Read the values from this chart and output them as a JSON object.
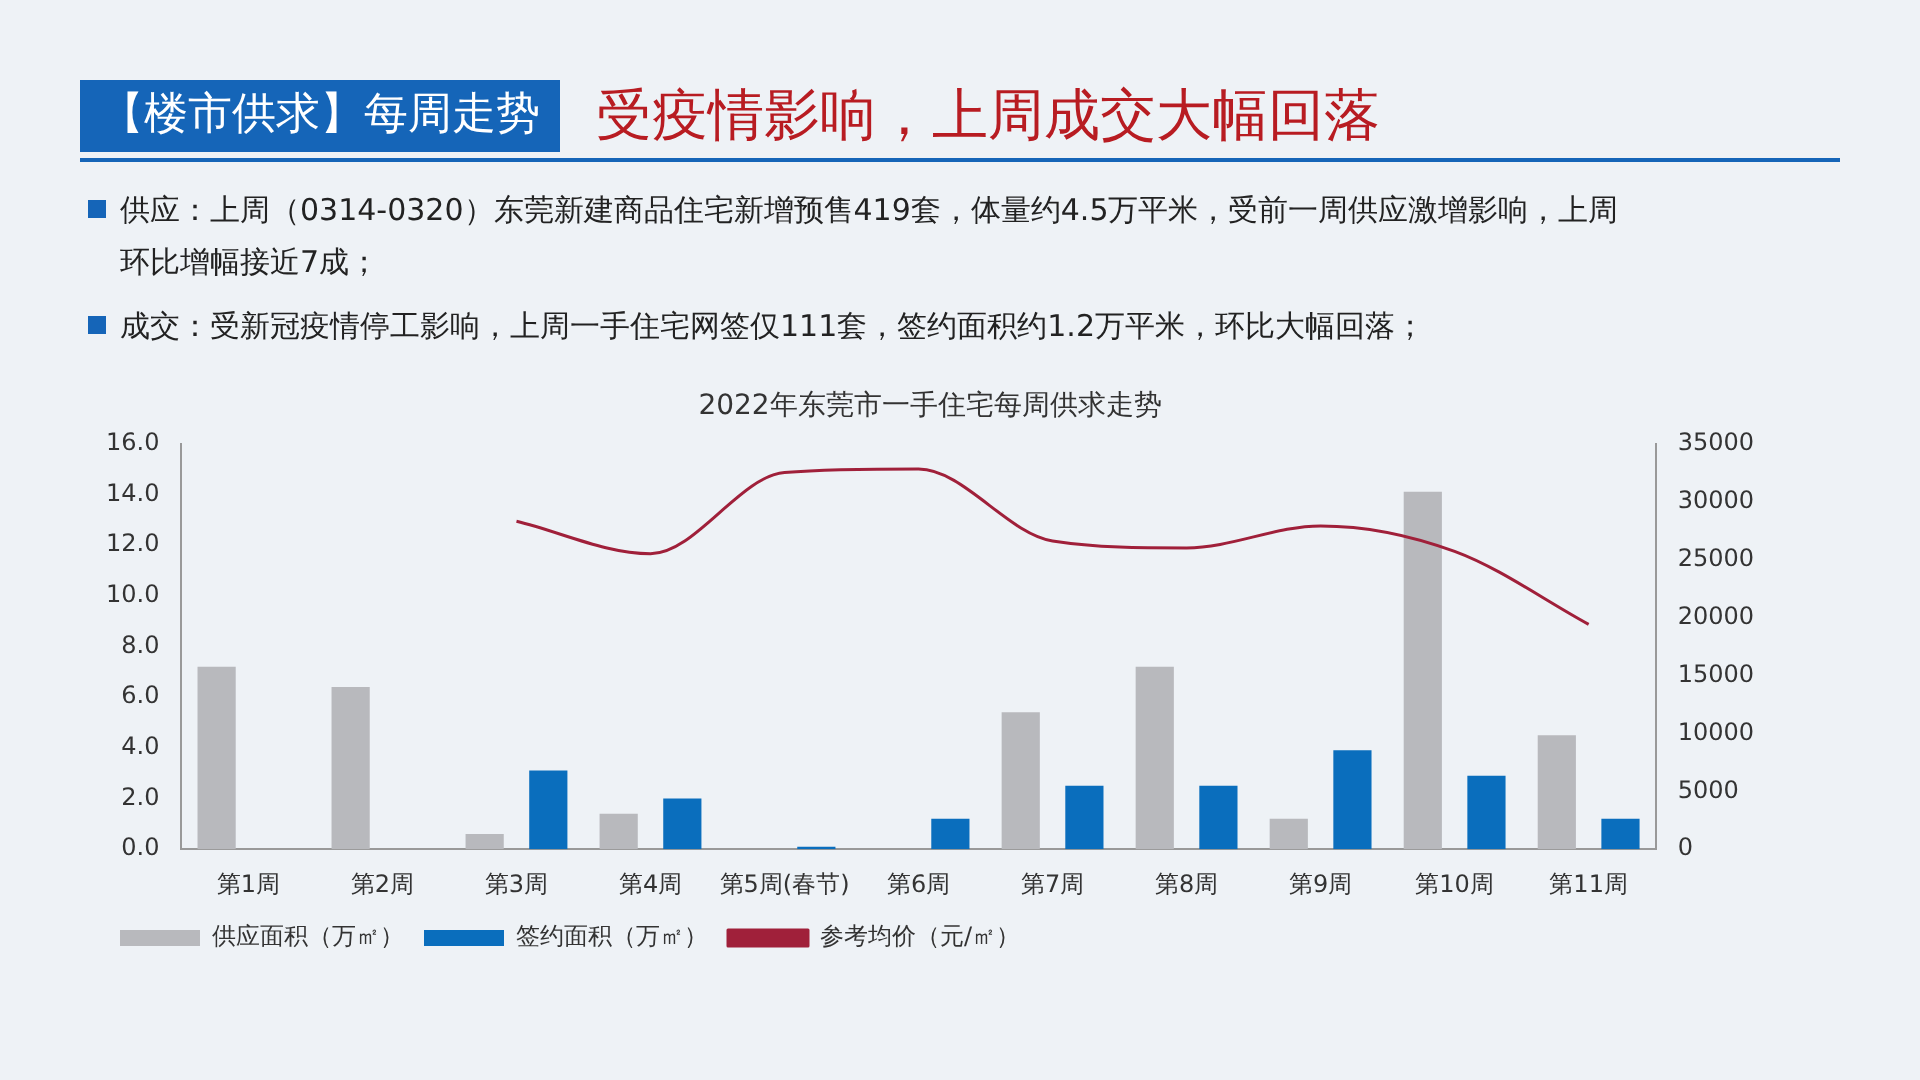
{
  "chart_data": {
    "type": "bar",
    "title": "2022年东莞市一手住宅每周供求走势",
    "annotations": [
      "【楼市供求】每周走势",
      "受疫情影响，上周成交大幅回落",
      "供应：上周（0314-0320）东莞新建商品住宅新增预售419套，体量约4.5万平米，受前一周供应激增影响，上周环比增幅接近7成；",
      "成交：受新冠疫情停工影响，上周一手住宅网签仅111套，签约面积约1.2万平米，环比大幅回落；"
    ],
    "categories": [
      "第1周",
      "第2周",
      "第3周",
      "第4周",
      "第5周(春节)",
      "第6周",
      "第7周",
      "第8周",
      "第9周",
      "第10周",
      "第11周"
    ],
    "series": [
      {
        "name": "供应面积（万㎡）",
        "color": "#b8b9bd",
        "values": [
          7.2,
          6.4,
          0.6,
          1.4,
          null,
          null,
          5.4,
          7.2,
          1.2,
          14.1,
          4.5
        ]
      },
      {
        "name": "签约面积（万㎡）",
        "color": "#0a6ebd",
        "values": [
          null,
          null,
          3.1,
          2.0,
          0.1,
          1.2,
          2.5,
          2.5,
          3.9,
          2.9,
          1.2
        ]
      },
      {
        "name": "参考均价（元/㎡）",
        "type": "line",
        "axis": "y2",
        "color": "#a0203a",
        "values": [
          null,
          null,
          28300,
          25500,
          32500,
          32800,
          26600,
          26000,
          27900,
          25700,
          19400
        ]
      }
    ],
    "ylim": [
      0,
      16
    ],
    "yticks": [
      {
        "value": 0,
        "label": "0.0"
      },
      {
        "value": 2,
        "label": "2.0"
      },
      {
        "value": 4,
        "label": "4.0"
      },
      {
        "value": 6,
        "label": "6.0"
      },
      {
        "value": 8,
        "label": "8.0"
      },
      {
        "value": 10,
        "label": "10.0"
      },
      {
        "value": 12,
        "label": "12.0"
      },
      {
        "value": 14,
        "label": "14.0"
      },
      {
        "value": 16,
        "label": "16.0"
      }
    ],
    "y2lim": [
      0,
      35000
    ],
    "y2ticks": [
      0,
      5000,
      10000,
      15000,
      20000,
      25000,
      30000,
      35000
    ],
    "legend": "bottom",
    "marker": "none"
  }
}
